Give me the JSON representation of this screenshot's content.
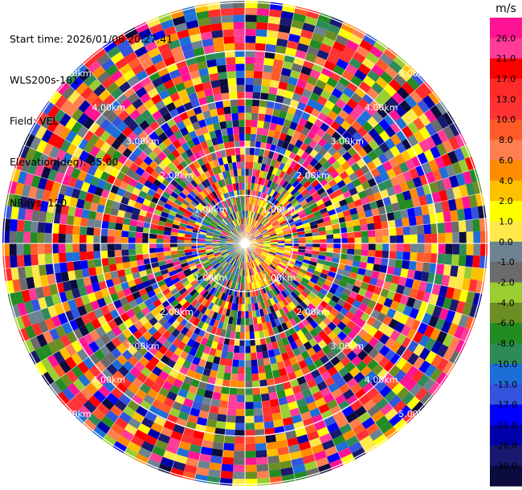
{
  "header": {
    "start_time": "Start time: 2026/01/06 20:27:41",
    "instrument": "WLS200s-181",
    "field": "Field: VEL",
    "elevation": "Elevation(deg): 35.00",
    "nrays": "NRays: 120"
  },
  "chart_data": {
    "type": "heatmap",
    "projection": "polar-ppi",
    "field": "VEL",
    "n_rays": 120,
    "range_rings": [
      "1.00km",
      "2.00km",
      "3.00km",
      "4.00km",
      "5.00km"
    ],
    "grid": true,
    "colorbar": {
      "unit": "m/s",
      "placement": "right",
      "labels": [
        "26.0",
        "21.0",
        "17.0",
        "13.0",
        "10.0",
        "8.0",
        "6.0",
        "4.0",
        "2.0",
        "1.0",
        "0.0",
        "-1.0",
        "-2.0",
        "-4.0",
        "-6.0",
        "-8.0",
        "-10.0",
        "-13.0",
        "-17.0",
        "-21.0",
        "-26.0",
        "-30.0"
      ],
      "colors": [
        "#ff1493",
        "#ff3c96",
        "#ff0000",
        "#ff2a2a",
        "#ff3333",
        "#ff5a28",
        "#ff7f50",
        "#ff8c00",
        "#ffc000",
        "#ffff00",
        "#ffe84a",
        "#6e8391",
        "#6b6b6b",
        "#9acd32",
        "#6b8e23",
        "#228b22",
        "#2e8b57",
        "#1e6ed8",
        "#3355dd",
        "#0000ff",
        "#0000aa",
        "#191970",
        "#0b0b3d"
      ]
    }
  }
}
